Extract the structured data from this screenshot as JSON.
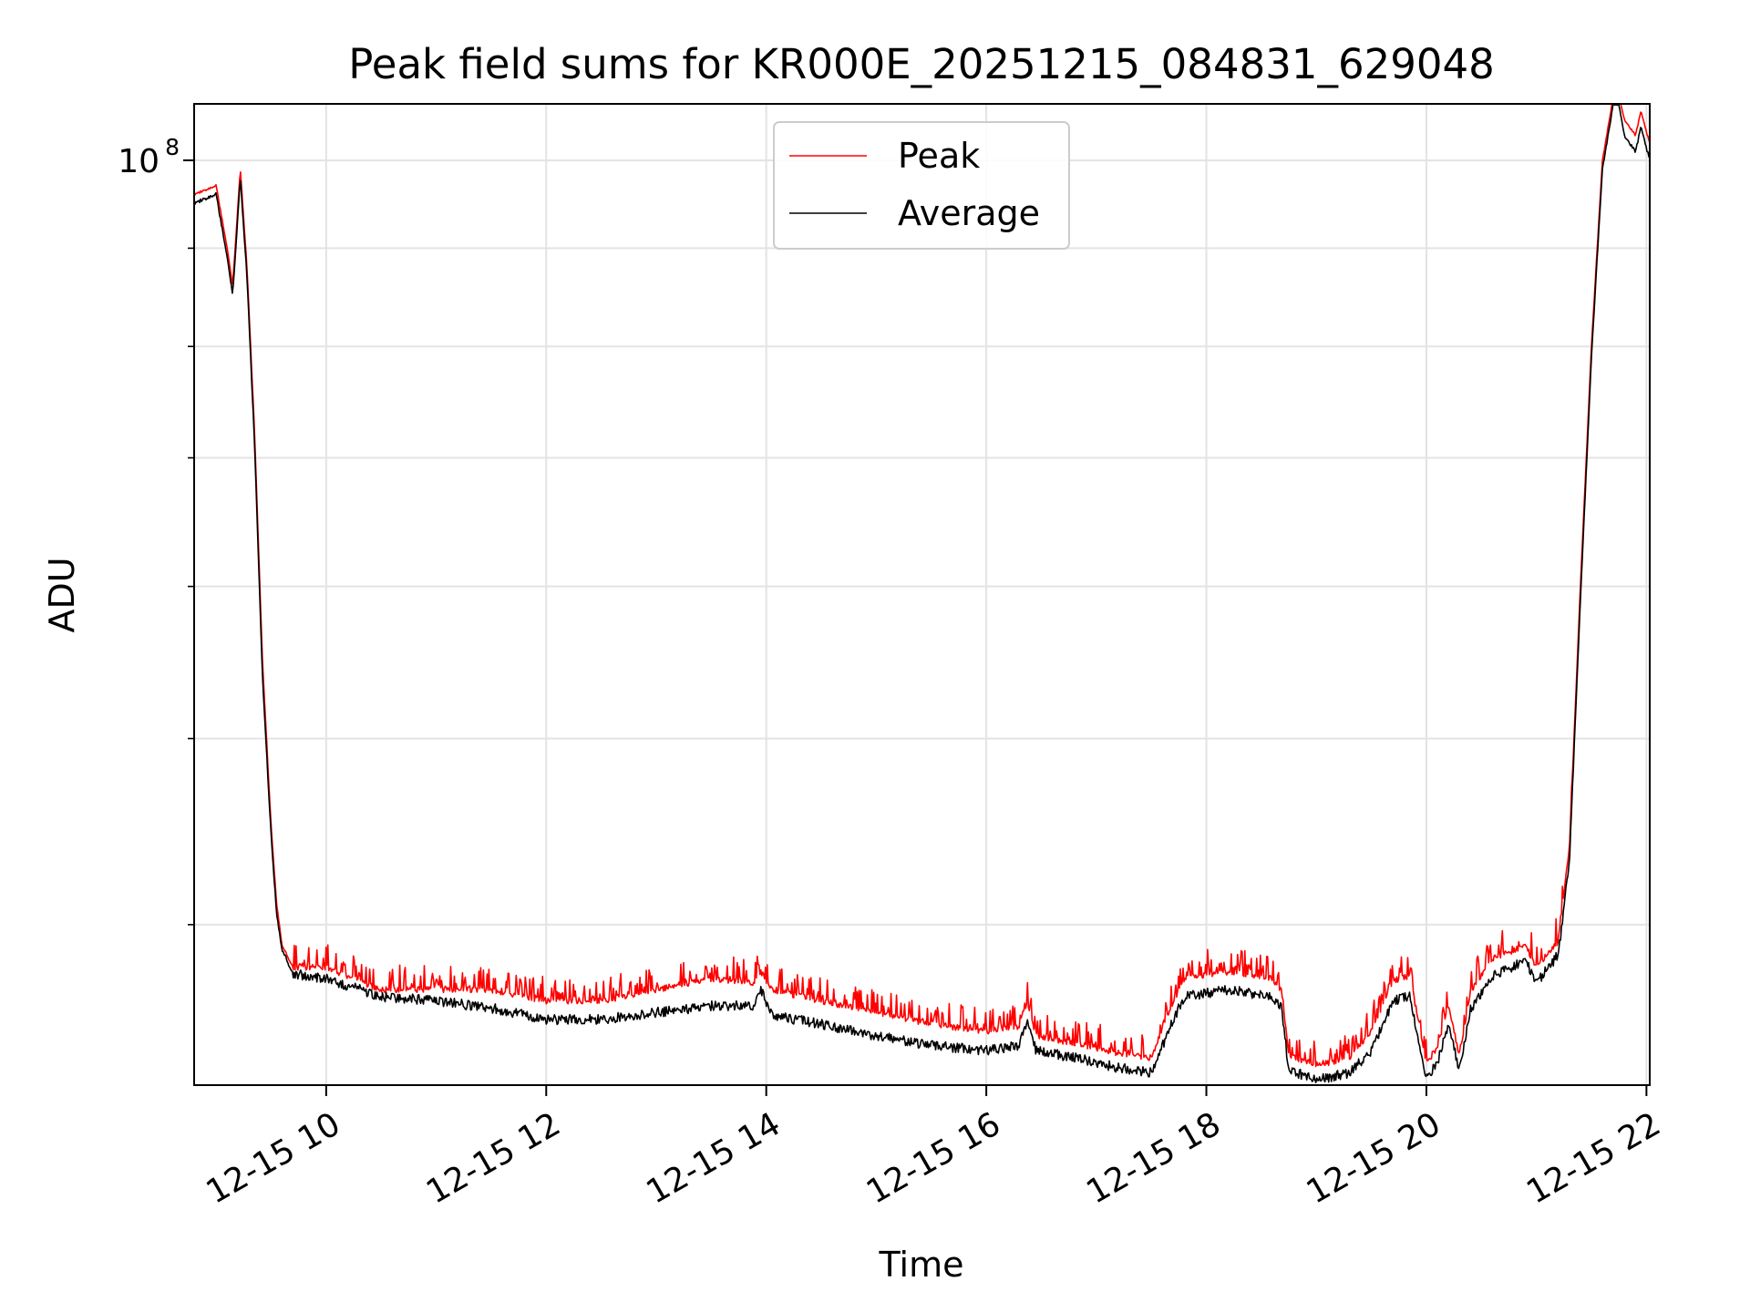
{
  "chart_data": {
    "type": "line",
    "title": "Peak field sums for KR000E_20251215_084831_629048",
    "xlabel": "Time",
    "ylabel": "ADU",
    "yscale": "log",
    "ylim": [
      33000000,
      107000000
    ],
    "xlim_hours": [
      8.8,
      22.03
    ],
    "grid": true,
    "legend_position": "upper center",
    "x_ticks": [
      {
        "h": 10,
        "label": "12-15 10"
      },
      {
        "h": 12,
        "label": "12-15 12"
      },
      {
        "h": 14,
        "label": "12-15 14"
      },
      {
        "h": 16,
        "label": "12-15 16"
      },
      {
        "h": 18,
        "label": "12-15 18"
      },
      {
        "h": 20,
        "label": "12-15 20"
      },
      {
        "h": 22,
        "label": "12-15 22"
      }
    ],
    "y_major_ticks": [
      {
        "value": 100000000,
        "base": "10",
        "exp": "8"
      }
    ],
    "y_minor_ticks": [
      40000000,
      50000000,
      60000000,
      70000000,
      80000000,
      90000000
    ],
    "colors": {
      "peak": "#ff0000",
      "average": "#000000"
    },
    "series": [
      {
        "name": "Peak",
        "x_hours": [
          8.8,
          9.0,
          9.1,
          9.15,
          9.22,
          9.28,
          9.35,
          9.42,
          9.5,
          9.55,
          9.6,
          9.7,
          10.0,
          10.5,
          11.0,
          11.5,
          12.0,
          12.5,
          13.0,
          13.5,
          13.9,
          13.95,
          14.05,
          14.5,
          15.0,
          15.5,
          16.0,
          16.3,
          16.37,
          16.45,
          16.8,
          17.2,
          17.5,
          17.7,
          17.8,
          18.2,
          18.6,
          18.68,
          18.75,
          19.0,
          19.3,
          19.5,
          19.7,
          19.85,
          20.0,
          20.1,
          20.2,
          20.3,
          20.4,
          20.6,
          20.9,
          21.0,
          21.2,
          21.3,
          21.4,
          21.5,
          21.6,
          21.7,
          21.75,
          21.8,
          21.9,
          21.95,
          22.03
        ],
        "values": [
          96000000,
          97000000,
          90000000,
          86000000,
          99000000,
          88000000,
          72000000,
          55000000,
          45000000,
          41000000,
          39000000,
          38000000,
          38000000,
          37000000,
          37000000,
          37000000,
          36500000,
          36500000,
          37000000,
          37500000,
          37300000,
          37800000,
          37000000,
          36500000,
          36000000,
          35500000,
          35200000,
          35400000,
          36500000,
          35000000,
          34700000,
          34300000,
          34100000,
          36500000,
          37500000,
          37800000,
          37500000,
          37000000,
          34200000,
          33800000,
          34100000,
          35200000,
          37400000,
          37600000,
          33900000,
          34500000,
          36300000,
          34200000,
          36900000,
          38400000,
          39000000,
          38000000,
          39200000,
          44000000,
          60000000,
          80000000,
          100000000,
          108000000,
          108000000,
          105000000,
          103000000,
          106000000,
          102000000
        ]
      },
      {
        "name": "Average",
        "x_hours": [
          8.8,
          9.0,
          9.1,
          9.15,
          9.22,
          9.28,
          9.35,
          9.42,
          9.5,
          9.55,
          9.6,
          9.7,
          10.0,
          10.5,
          11.0,
          11.5,
          12.0,
          12.5,
          13.0,
          13.5,
          13.9,
          13.95,
          14.05,
          14.5,
          15.0,
          15.5,
          16.0,
          16.3,
          16.37,
          16.45,
          16.8,
          17.2,
          17.5,
          17.7,
          17.8,
          18.2,
          18.6,
          18.68,
          18.75,
          19.0,
          19.3,
          19.5,
          19.7,
          19.85,
          20.0,
          20.1,
          20.2,
          20.3,
          20.4,
          20.6,
          20.9,
          21.0,
          21.2,
          21.3,
          21.4,
          21.5,
          21.6,
          21.7,
          21.75,
          21.8,
          21.9,
          21.95,
          22.03
        ],
        "values": [
          95000000,
          96000000,
          89000000,
          85000000,
          98000000,
          87000000,
          71000000,
          54000000,
          44500000,
          40500000,
          38800000,
          37700000,
          37500000,
          36700000,
          36500000,
          36200000,
          35700000,
          35700000,
          36000000,
          36300000,
          36300000,
          37000000,
          35900000,
          35500000,
          35000000,
          34600000,
          34400000,
          34600000,
          35700000,
          34400000,
          34100000,
          33700000,
          33500000,
          35700000,
          36700000,
          37000000,
          36700000,
          36300000,
          33600000,
          33200000,
          33500000,
          34400000,
          36500000,
          36700000,
          33300000,
          33900000,
          35500000,
          33600000,
          36100000,
          37600000,
          38300000,
          37300000,
          38600000,
          43300000,
          59000000,
          79000000,
          99000000,
          107000000,
          107000000,
          103000000,
          101000000,
          104000000,
          100000000
        ]
      }
    ]
  }
}
